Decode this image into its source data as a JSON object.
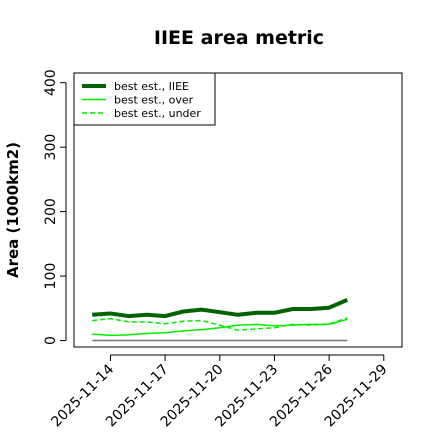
{
  "chart_data": {
    "type": "line",
    "title": "IIEE area metric",
    "xlabel": "",
    "ylabel": "Area (1000km2)",
    "x_axis": {
      "type": "date",
      "range": [
        "2025-11-12",
        "2025-11-30"
      ],
      "ticks": [
        "2025-11-14",
        "2025-11-17",
        "2025-11-20",
        "2025-11-23",
        "2025-11-26",
        "2025-11-29"
      ]
    },
    "y_axis": {
      "range": [
        -10,
        415
      ],
      "ticks": [
        0,
        100,
        200,
        300,
        400
      ],
      "tick_labels": [
        "0",
        "100",
        "200",
        "300",
        "400"
      ]
    },
    "grid": false,
    "legend": {
      "placement": "top-left",
      "entries": [
        {
          "label": "best est., IIEE",
          "series_index": 0
        },
        {
          "label": "best est., over",
          "series_index": 1
        },
        {
          "label": "best est., under",
          "series_index": 2
        }
      ]
    },
    "baseline_value": 0,
    "series": [
      {
        "name": "best est., IIEE",
        "color": "#006400",
        "style": "solid",
        "width": "thick",
        "x": [
          "2025-11-13",
          "2025-11-14",
          "2025-11-15",
          "2025-11-16",
          "2025-11-17",
          "2025-11-18",
          "2025-11-19",
          "2025-11-20",
          "2025-11-21",
          "2025-11-22",
          "2025-11-23",
          "2025-11-24",
          "2025-11-25",
          "2025-11-26",
          "2025-11-27"
        ],
        "y": [
          40,
          42,
          38,
          40,
          38,
          45,
          48,
          44,
          40,
          43,
          43,
          49,
          49,
          51,
          63
        ]
      },
      {
        "name": "best est., over",
        "color": "#00ee00",
        "style": "solid",
        "width": "thin",
        "x": [
          "2025-11-13",
          "2025-11-14",
          "2025-11-15",
          "2025-11-16",
          "2025-11-17",
          "2025-11-18",
          "2025-11-19",
          "2025-11-20",
          "2025-11-21",
          "2025-11-22",
          "2025-11-23",
          "2025-11-24",
          "2025-11-25",
          "2025-11-26",
          "2025-11-27"
        ],
        "y": [
          10,
          8,
          9,
          11,
          12,
          15,
          17,
          20,
          24,
          25,
          23,
          24,
          25,
          25,
          33
        ]
      },
      {
        "name": "best est., under",
        "color": "#00ee00",
        "style": "dashed",
        "width": "thin",
        "x": [
          "2025-11-13",
          "2025-11-14",
          "2025-11-15",
          "2025-11-16",
          "2025-11-17",
          "2025-11-18",
          "2025-11-19",
          "2025-11-20",
          "2025-11-21",
          "2025-11-22",
          "2025-11-23",
          "2025-11-24",
          "2025-11-25",
          "2025-11-26",
          "2025-11-27"
        ],
        "y": [
          31,
          34,
          29,
          29,
          26,
          30,
          31,
          24,
          16,
          18,
          20,
          25,
          24,
          26,
          35
        ]
      }
    ]
  }
}
